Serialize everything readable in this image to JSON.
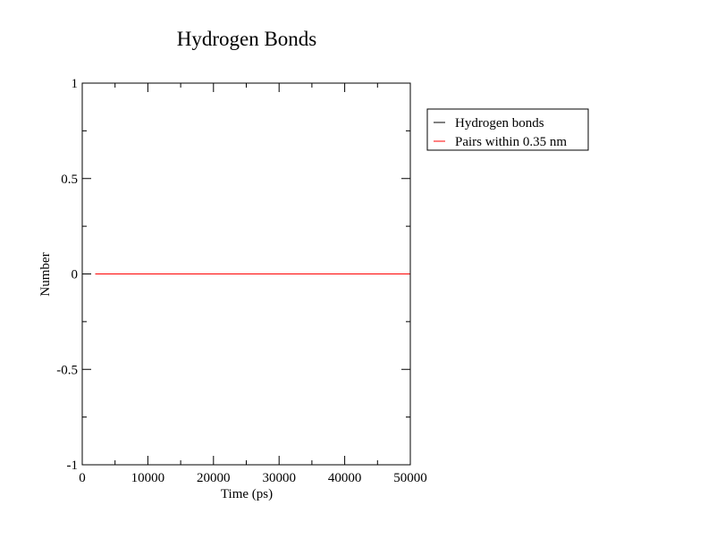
{
  "chart_data": {
    "type": "line",
    "title": "Hydrogen Bonds",
    "xlabel": "Time (ps)",
    "ylabel": "Number",
    "xlim": [
      0,
      50000
    ],
    "ylim": [
      -1,
      1
    ],
    "x_ticks": [
      0,
      10000,
      20000,
      30000,
      40000,
      50000
    ],
    "x_tick_labels": [
      "0",
      "10000",
      "20000",
      "30000",
      "40000",
      "50000"
    ],
    "y_ticks": [
      -1,
      -0.5,
      0,
      0.5,
      1
    ],
    "y_tick_labels": [
      "-1",
      "-0.5",
      "0",
      "0.5",
      "1"
    ],
    "x_minor_step": 5000,
    "y_minor_step": 0.25,
    "grid": false,
    "legend_position": "right-outside-top",
    "series": [
      {
        "name": "Hydrogen bonds",
        "color": "#000000",
        "x": [
          2000,
          50000
        ],
        "y": [
          0,
          0
        ]
      },
      {
        "name": "Pairs within 0.35 nm",
        "color": "#ff0000",
        "x": [
          2000,
          50000
        ],
        "y": [
          0,
          0
        ]
      }
    ]
  }
}
